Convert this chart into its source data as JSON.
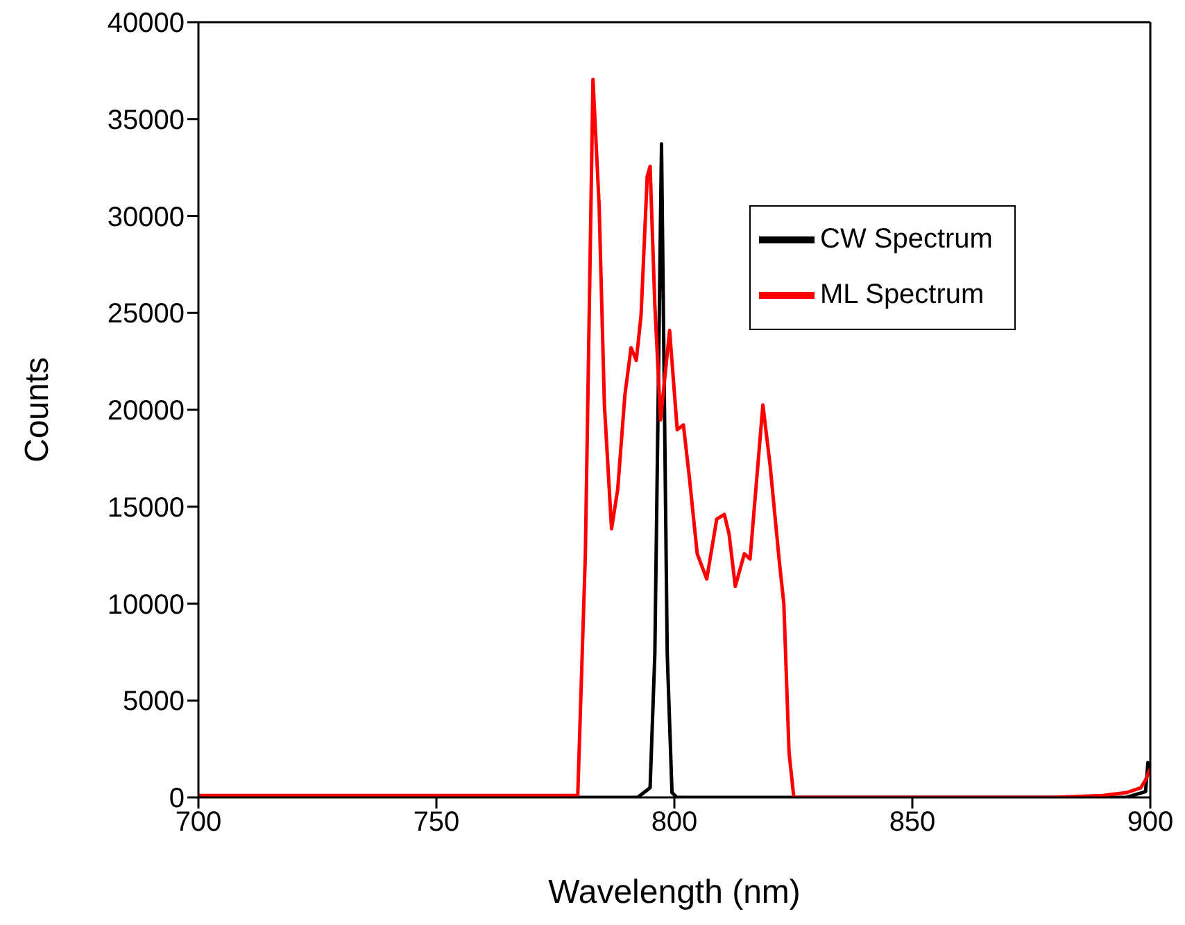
{
  "chart_data": {
    "type": "line",
    "xlabel": "Wavelength (nm)",
    "ylabel": "Counts",
    "xlim": [
      700,
      900
    ],
    "xticks": [
      700,
      750,
      800,
      850,
      900
    ],
    "ylim": [
      0,
      40000
    ],
    "yticks": [
      0,
      5000,
      10000,
      15000,
      20000,
      25000,
      30000,
      35000,
      40000
    ],
    "grid": false,
    "legend": "top right",
    "marker": "none",
    "line_style": "solid",
    "series": [
      {
        "name": "CW Spectrum",
        "color": "#000000",
        "x": [
          700,
          750,
          790,
          792.3,
          794.9,
          795.9,
          797.3,
          798.5,
          799.5,
          800.5,
          830,
          880,
          895,
          899,
          899.5,
          900
        ],
        "values": [
          0,
          0,
          0,
          0,
          500,
          7430,
          33720,
          7430,
          250,
          0,
          0,
          0,
          0,
          300,
          1800,
          1200
        ]
      },
      {
        "name": "ML Spectrum",
        "color": "#ff0000",
        "x": [
          700,
          750,
          775,
          779.7,
          781.3,
          782.9,
          784.2,
          785.3,
          786.8,
          788.1,
          789.6,
          790.9,
          792.0,
          793.0,
          794.3,
          794.9,
          795.9,
          797.1,
          799.0,
          800.6,
          801.9,
          803.2,
          804.8,
          806.8,
          808.9,
          810.5,
          811.5,
          812.8,
          814.7,
          815.9,
          818.6,
          820.1,
          822.0,
          823.0,
          824.1,
          825.1,
          850,
          880,
          890,
          895,
          898,
          899,
          900
        ],
        "values": [
          100,
          100,
          100,
          100,
          12560,
          37050,
          30500,
          20250,
          13860,
          15900,
          20750,
          23200,
          22550,
          24870,
          32050,
          32560,
          25380,
          19480,
          24100,
          18970,
          19220,
          16400,
          12570,
          11270,
          14360,
          14600,
          13580,
          10890,
          12570,
          12300,
          20250,
          17170,
          12300,
          9990,
          2300,
          0,
          0,
          0,
          100,
          250,
          500,
          900,
          1500
        ]
      }
    ]
  }
}
